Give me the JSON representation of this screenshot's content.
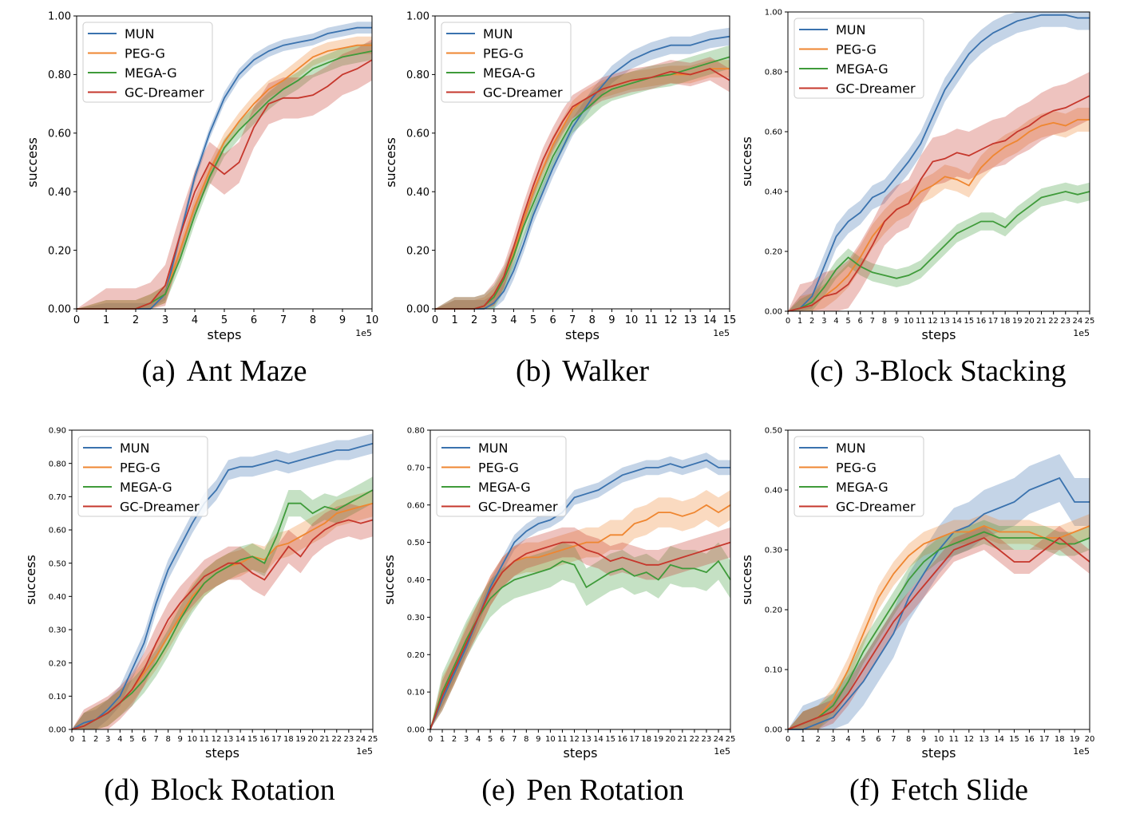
{
  "colors": {
    "MUN": "#3a72ae",
    "PEG-G": "#ef8630",
    "MEGA-G": "#3f9b3a",
    "GC-Dreamer": "#c6372c"
  },
  "legend_labels": [
    "MUN",
    "PEG-G",
    "MEGA-G",
    "GC-Dreamer"
  ],
  "chart_data": [
    {
      "type": "line",
      "caption_label": "(a)",
      "caption_title": "Ant Maze",
      "xlabel": "steps",
      "ylabel": "success",
      "x_multiplier": "1e5",
      "xlim": [
        0,
        10
      ],
      "ylim": [
        0,
        1.0
      ],
      "xticks": [
        "0",
        "1",
        "2",
        "3",
        "4",
        "5",
        "6",
        "7",
        "8",
        "9",
        "10"
      ],
      "yticks": [
        "0.00",
        "0.20",
        "0.40",
        "0.60",
        "0.80",
        "1.00"
      ],
      "legend_position": "upper-left",
      "x": [
        0,
        1,
        2,
        2.5,
        3,
        3.5,
        4,
        4.5,
        5,
        5.5,
        6,
        6.5,
        7,
        7.5,
        8,
        8.5,
        9,
        9.5,
        10
      ],
      "series": [
        {
          "name": "MUN",
          "values": [
            0,
            0,
            0,
            0,
            0.05,
            0.25,
            0.45,
            0.6,
            0.72,
            0.8,
            0.85,
            0.88,
            0.9,
            0.91,
            0.92,
            0.94,
            0.95,
            0.96,
            0.96
          ],
          "band": 0.02
        },
        {
          "name": "PEG-G",
          "values": [
            0,
            0,
            0,
            0.02,
            0.05,
            0.2,
            0.35,
            0.47,
            0.57,
            0.64,
            0.7,
            0.75,
            0.78,
            0.82,
            0.86,
            0.88,
            0.89,
            0.9,
            0.9
          ],
          "band": 0.03
        },
        {
          "name": "MEGA-G",
          "values": [
            0,
            0,
            0,
            0.02,
            0.05,
            0.17,
            0.32,
            0.45,
            0.55,
            0.61,
            0.66,
            0.71,
            0.75,
            0.78,
            0.82,
            0.84,
            0.86,
            0.87,
            0.88
          ],
          "band": 0.03
        },
        {
          "name": "GC-Dreamer",
          "values": [
            0,
            0,
            0,
            0.02,
            0.08,
            0.25,
            0.4,
            0.5,
            0.46,
            0.5,
            0.62,
            0.7,
            0.72,
            0.72,
            0.73,
            0.76,
            0.8,
            0.82,
            0.85
          ],
          "band": 0.07
        }
      ]
    },
    {
      "type": "line",
      "caption_label": "(b)",
      "caption_title": "Walker",
      "xlabel": "steps",
      "ylabel": "success",
      "x_multiplier": "1e5",
      "xlim": [
        0,
        15
      ],
      "ylim": [
        0,
        1.0
      ],
      "xticks": [
        "0",
        "1",
        "2",
        "3",
        "4",
        "5",
        "6",
        "7",
        "8",
        "9",
        "10",
        "11",
        "12",
        "13",
        "14",
        "15"
      ],
      "yticks": [
        "0.00",
        "0.20",
        "0.40",
        "0.60",
        "0.80",
        "1.00"
      ],
      "legend_position": "upper-left",
      "x": [
        0,
        1,
        2,
        2.5,
        3,
        3.5,
        4,
        4.5,
        5,
        5.5,
        6,
        6.5,
        7,
        7.5,
        8,
        8.5,
        9,
        10,
        11,
        12,
        13,
        14,
        15
      ],
      "series": [
        {
          "name": "MUN",
          "values": [
            0,
            0,
            0,
            0,
            0.02,
            0.06,
            0.13,
            0.22,
            0.32,
            0.4,
            0.48,
            0.55,
            0.62,
            0.67,
            0.72,
            0.76,
            0.8,
            0.85,
            0.88,
            0.9,
            0.9,
            0.92,
            0.93
          ],
          "band": 0.03
        },
        {
          "name": "PEG-G",
          "values": [
            0,
            0,
            0,
            0.01,
            0.04,
            0.1,
            0.19,
            0.3,
            0.4,
            0.48,
            0.56,
            0.62,
            0.68,
            0.71,
            0.73,
            0.75,
            0.76,
            0.78,
            0.79,
            0.8,
            0.8,
            0.82,
            0.82
          ],
          "band": 0.03
        },
        {
          "name": "MEGA-G",
          "values": [
            0,
            0,
            0,
            0.01,
            0.04,
            0.1,
            0.18,
            0.28,
            0.36,
            0.44,
            0.52,
            0.58,
            0.64,
            0.67,
            0.7,
            0.73,
            0.75,
            0.77,
            0.79,
            0.8,
            0.82,
            0.84,
            0.86
          ],
          "band": 0.04
        },
        {
          "name": "GC-Dreamer",
          "values": [
            0,
            0,
            0,
            0.01,
            0.05,
            0.11,
            0.21,
            0.32,
            0.42,
            0.51,
            0.58,
            0.64,
            0.69,
            0.71,
            0.73,
            0.75,
            0.76,
            0.78,
            0.79,
            0.81,
            0.8,
            0.82,
            0.78
          ],
          "band": 0.04
        }
      ]
    },
    {
      "type": "line",
      "caption_label": "(c)",
      "caption_title": "3-Block Stacking",
      "xlabel": "steps",
      "ylabel": "success",
      "x_multiplier": "1e5",
      "xlim": [
        0,
        25
      ],
      "ylim": [
        0,
        1.0
      ],
      "xticks": [
        "0",
        "1",
        "2",
        "3",
        "4",
        "5",
        "6",
        "7",
        "8",
        "9",
        "10",
        "11",
        "12",
        "13",
        "14",
        "15",
        "16",
        "17",
        "18",
        "19",
        "20",
        "21",
        "22",
        "23",
        "24",
        "25"
      ],
      "yticks": [
        "0.00",
        "0.20",
        "0.40",
        "0.60",
        "0.80",
        "1.00"
      ],
      "legend_position": "upper-left",
      "x": [
        0,
        1,
        2,
        3,
        4,
        5,
        6,
        7,
        8,
        9,
        10,
        11,
        12,
        13,
        14,
        15,
        16,
        17,
        18,
        19,
        20,
        21,
        22,
        23,
        24,
        25
      ],
      "series": [
        {
          "name": "MUN",
          "values": [
            0,
            0.01,
            0.05,
            0.15,
            0.25,
            0.3,
            0.33,
            0.38,
            0.4,
            0.45,
            0.5,
            0.56,
            0.65,
            0.74,
            0.8,
            0.86,
            0.9,
            0.93,
            0.95,
            0.97,
            0.98,
            0.99,
            0.99,
            0.99,
            0.98,
            0.98
          ],
          "band": 0.04
        },
        {
          "name": "PEG-G",
          "values": [
            0,
            0.01,
            0.02,
            0.05,
            0.08,
            0.12,
            0.18,
            0.25,
            0.3,
            0.34,
            0.36,
            0.4,
            0.42,
            0.45,
            0.44,
            0.42,
            0.48,
            0.52,
            0.55,
            0.57,
            0.6,
            0.62,
            0.63,
            0.62,
            0.64,
            0.64
          ],
          "band": 0.04
        },
        {
          "name": "MEGA-G",
          "values": [
            0,
            0.01,
            0.03,
            0.08,
            0.14,
            0.18,
            0.15,
            0.13,
            0.12,
            0.11,
            0.12,
            0.14,
            0.18,
            0.22,
            0.26,
            0.28,
            0.3,
            0.3,
            0.28,
            0.32,
            0.35,
            0.38,
            0.39,
            0.4,
            0.39,
            0.4
          ],
          "band": 0.03
        },
        {
          "name": "GC-Dreamer",
          "values": [
            0,
            0.01,
            0.02,
            0.05,
            0.06,
            0.09,
            0.15,
            0.22,
            0.3,
            0.34,
            0.36,
            0.44,
            0.5,
            0.51,
            0.53,
            0.52,
            0.54,
            0.56,
            0.57,
            0.6,
            0.62,
            0.65,
            0.67,
            0.68,
            0.7,
            0.72
          ],
          "band": 0.08
        }
      ]
    },
    {
      "type": "line",
      "caption_label": "(d)",
      "caption_title": "Block Rotation",
      "xlabel": "steps",
      "ylabel": "success",
      "x_multiplier": "1e5",
      "xlim": [
        0,
        25
      ],
      "ylim": [
        0,
        0.9
      ],
      "xticks": [
        "0",
        "1",
        "2",
        "3",
        "4",
        "5",
        "6",
        "7",
        "8",
        "9",
        "10",
        "11",
        "12",
        "13",
        "14",
        "15",
        "16",
        "17",
        "18",
        "19",
        "20",
        "21",
        "22",
        "23",
        "24",
        "25"
      ],
      "yticks": [
        "0.00",
        "0.10",
        "0.20",
        "0.30",
        "0.40",
        "0.50",
        "0.60",
        "0.70",
        "0.80",
        "0.90"
      ],
      "legend_position": "upper-left",
      "x": [
        0,
        1,
        2,
        3,
        4,
        5,
        6,
        7,
        8,
        9,
        10,
        11,
        12,
        13,
        14,
        15,
        16,
        17,
        18,
        19,
        20,
        21,
        22,
        23,
        24,
        25
      ],
      "series": [
        {
          "name": "MUN",
          "values": [
            0,
            0.02,
            0.03,
            0.06,
            0.1,
            0.18,
            0.26,
            0.38,
            0.48,
            0.55,
            0.62,
            0.68,
            0.72,
            0.78,
            0.79,
            0.79,
            0.8,
            0.81,
            0.8,
            0.81,
            0.82,
            0.83,
            0.84,
            0.84,
            0.85,
            0.86
          ],
          "band": 0.03
        },
        {
          "name": "PEG-G",
          "values": [
            0,
            0.01,
            0.03,
            0.05,
            0.08,
            0.12,
            0.17,
            0.22,
            0.28,
            0.34,
            0.4,
            0.44,
            0.47,
            0.49,
            0.5,
            0.52,
            0.51,
            0.55,
            0.56,
            0.58,
            0.6,
            0.62,
            0.65,
            0.66,
            0.67,
            0.68
          ],
          "band": 0.04
        },
        {
          "name": "MEGA-G",
          "values": [
            0,
            0.01,
            0.03,
            0.05,
            0.08,
            0.11,
            0.15,
            0.2,
            0.26,
            0.33,
            0.39,
            0.44,
            0.47,
            0.49,
            0.51,
            0.52,
            0.5,
            0.58,
            0.68,
            0.68,
            0.65,
            0.67,
            0.66,
            0.68,
            0.7,
            0.72
          ],
          "band": 0.04
        },
        {
          "name": "GC-Dreamer",
          "values": [
            0,
            0.01,
            0.03,
            0.05,
            0.08,
            0.12,
            0.18,
            0.26,
            0.33,
            0.38,
            0.42,
            0.46,
            0.48,
            0.5,
            0.5,
            0.47,
            0.45,
            0.5,
            0.55,
            0.52,
            0.57,
            0.6,
            0.62,
            0.63,
            0.62,
            0.63
          ],
          "band": 0.05
        }
      ]
    },
    {
      "type": "line",
      "caption_label": "(e)",
      "caption_title": "Pen Rotation",
      "xlabel": "steps",
      "ylabel": "success",
      "x_multiplier": "1e5",
      "xlim": [
        0,
        25
      ],
      "ylim": [
        0,
        0.8
      ],
      "xticks": [
        "0",
        "1",
        "2",
        "3",
        "4",
        "5",
        "6",
        "7",
        "8",
        "9",
        "10",
        "11",
        "12",
        "13",
        "14",
        "15",
        "16",
        "17",
        "18",
        "19",
        "20",
        "21",
        "22",
        "23",
        "24",
        "25"
      ],
      "yticks": [
        "0.00",
        "0.10",
        "0.20",
        "0.30",
        "0.40",
        "0.50",
        "0.60",
        "0.70",
        "0.80"
      ],
      "legend_position": "upper-left",
      "x": [
        0,
        1,
        2,
        3,
        4,
        5,
        6,
        7,
        8,
        9,
        10,
        11,
        12,
        13,
        14,
        15,
        16,
        17,
        18,
        19,
        20,
        21,
        22,
        23,
        24,
        25
      ],
      "series": [
        {
          "name": "MUN",
          "values": [
            0,
            0.08,
            0.15,
            0.22,
            0.3,
            0.38,
            0.44,
            0.5,
            0.53,
            0.55,
            0.56,
            0.58,
            0.62,
            0.63,
            0.64,
            0.66,
            0.68,
            0.69,
            0.7,
            0.7,
            0.71,
            0.7,
            0.71,
            0.72,
            0.7,
            0.7
          ],
          "band": 0.02
        },
        {
          "name": "PEG-G",
          "values": [
            0,
            0.1,
            0.16,
            0.24,
            0.3,
            0.37,
            0.42,
            0.45,
            0.46,
            0.46,
            0.47,
            0.48,
            0.49,
            0.5,
            0.5,
            0.52,
            0.52,
            0.55,
            0.56,
            0.58,
            0.58,
            0.57,
            0.58,
            0.6,
            0.58,
            0.6
          ],
          "band": 0.04
        },
        {
          "name": "MEGA-G",
          "values": [
            0,
            0.1,
            0.17,
            0.24,
            0.3,
            0.35,
            0.38,
            0.4,
            0.41,
            0.42,
            0.43,
            0.45,
            0.44,
            0.38,
            0.4,
            0.42,
            0.43,
            0.41,
            0.42,
            0.4,
            0.44,
            0.43,
            0.43,
            0.42,
            0.45,
            0.4
          ],
          "band": 0.05
        },
        {
          "name": "GC-Dreamer",
          "values": [
            0,
            0.09,
            0.16,
            0.23,
            0.3,
            0.37,
            0.42,
            0.45,
            0.47,
            0.48,
            0.49,
            0.5,
            0.5,
            0.48,
            0.47,
            0.45,
            0.46,
            0.45,
            0.44,
            0.44,
            0.45,
            0.46,
            0.47,
            0.48,
            0.49,
            0.5
          ],
          "band": 0.04
        }
      ]
    },
    {
      "type": "line",
      "caption_label": "(f)",
      "caption_title": "Fetch Slide",
      "xlabel": "steps",
      "ylabel": "success",
      "x_multiplier": "1e5",
      "xlim": [
        0,
        20
      ],
      "ylim": [
        0,
        0.5
      ],
      "xticks": [
        "0",
        "1",
        "2",
        "3",
        "4",
        "5",
        "6",
        "7",
        "8",
        "9",
        "10",
        "11",
        "12",
        "13",
        "14",
        "15",
        "16",
        "17",
        "18",
        "19",
        "20"
      ],
      "yticks": [
        "0.00",
        "0.10",
        "0.20",
        "0.30",
        "0.40",
        "0.50"
      ],
      "legend_position": "upper-left",
      "x": [
        0,
        1,
        2,
        3,
        4,
        5,
        6,
        7,
        8,
        9,
        10,
        11,
        12,
        13,
        14,
        15,
        16,
        17,
        18,
        19,
        20
      ],
      "series": [
        {
          "name": "MUN",
          "values": [
            0,
            0.0,
            0.01,
            0.02,
            0.05,
            0.08,
            0.12,
            0.16,
            0.22,
            0.26,
            0.3,
            0.33,
            0.34,
            0.36,
            0.37,
            0.38,
            0.4,
            0.41,
            0.42,
            0.38,
            0.38
          ],
          "band": 0.04
        },
        {
          "name": "PEG-G",
          "values": [
            0,
            0.01,
            0.02,
            0.05,
            0.1,
            0.16,
            0.22,
            0.26,
            0.29,
            0.31,
            0.32,
            0.33,
            0.33,
            0.34,
            0.33,
            0.33,
            0.33,
            0.32,
            0.32,
            0.33,
            0.34
          ],
          "band": 0.02
        },
        {
          "name": "MEGA-G",
          "values": [
            0,
            0.01,
            0.02,
            0.04,
            0.08,
            0.13,
            0.17,
            0.21,
            0.25,
            0.28,
            0.3,
            0.31,
            0.32,
            0.33,
            0.32,
            0.32,
            0.32,
            0.32,
            0.31,
            0.31,
            0.32
          ],
          "band": 0.02
        },
        {
          "name": "GC-Dreamer",
          "values": [
            0,
            0.01,
            0.02,
            0.03,
            0.06,
            0.1,
            0.14,
            0.18,
            0.21,
            0.24,
            0.27,
            0.3,
            0.31,
            0.32,
            0.3,
            0.28,
            0.28,
            0.3,
            0.32,
            0.3,
            0.28
          ],
          "band": 0.02
        }
      ]
    }
  ]
}
